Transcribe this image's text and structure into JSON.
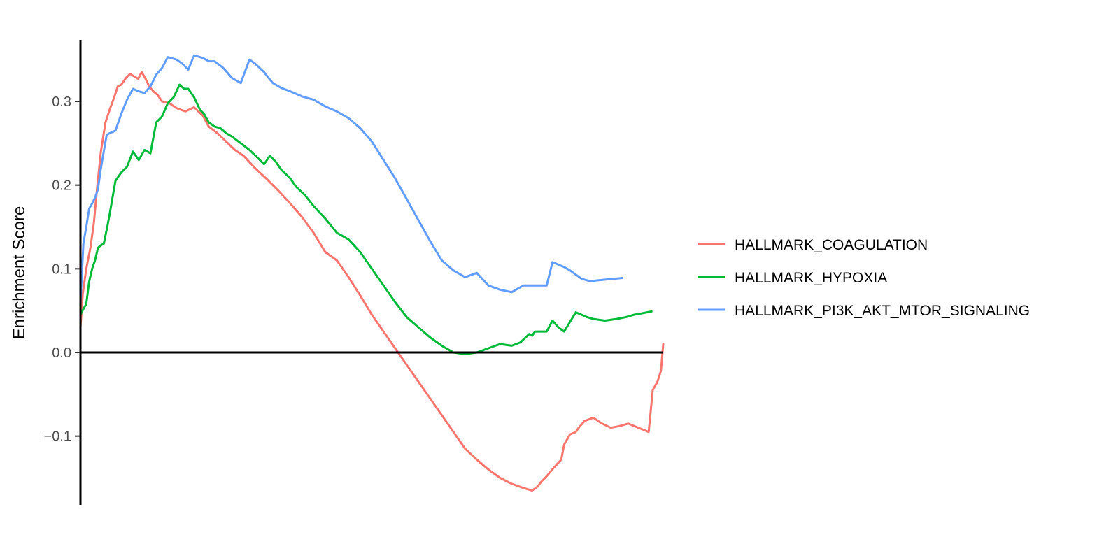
{
  "chart_data": {
    "type": "line",
    "title": "",
    "xlabel": "",
    "ylabel": "Enrichment Score",
    "xlim": [
      0,
      1
    ],
    "ylim": [
      -0.185,
      0.375
    ],
    "yticks": [
      -0.1,
      0.0,
      0.1,
      0.2,
      0.3
    ],
    "ytick_labels": [
      "−0.1",
      "0.0",
      "0.1",
      "0.2",
      "0.3"
    ],
    "grid": false,
    "legend_position": "right",
    "zero_line": true,
    "series": [
      {
        "name": "HALLMARK_COAGULATION",
        "color": "#F8766D",
        "x": [
          0.0,
          0.004,
          0.01,
          0.017,
          0.023,
          0.029,
          0.035,
          0.043,
          0.05,
          0.058,
          0.064,
          0.07,
          0.078,
          0.085,
          0.092,
          0.099,
          0.105,
          0.111,
          0.118,
          0.125,
          0.132,
          0.14,
          0.152,
          0.165,
          0.18,
          0.195,
          0.21,
          0.22,
          0.235,
          0.25,
          0.265,
          0.28,
          0.3,
          0.32,
          0.34,
          0.36,
          0.38,
          0.4,
          0.42,
          0.44,
          0.46,
          0.48,
          0.5,
          0.52,
          0.54,
          0.56,
          0.58,
          0.6,
          0.62,
          0.64,
          0.66,
          0.68,
          0.7,
          0.72,
          0.74,
          0.76,
          0.775,
          0.785,
          0.79,
          0.8,
          0.812,
          0.825,
          0.83,
          0.84,
          0.85,
          0.855,
          0.865,
          0.88,
          0.895,
          0.91,
          0.925,
          0.94,
          0.975,
          0.982,
          0.99,
          0.996,
          1.0
        ],
        "y": [
          0.03,
          0.07,
          0.1,
          0.125,
          0.155,
          0.2,
          0.24,
          0.275,
          0.29,
          0.305,
          0.318,
          0.32,
          0.328,
          0.333,
          0.33,
          0.327,
          0.335,
          0.328,
          0.318,
          0.312,
          0.308,
          0.3,
          0.298,
          0.292,
          0.288,
          0.293,
          0.283,
          0.27,
          0.262,
          0.252,
          0.242,
          0.235,
          0.22,
          0.207,
          0.193,
          0.178,
          0.162,
          0.143,
          0.12,
          0.11,
          0.09,
          0.068,
          0.045,
          0.025,
          0.005,
          -0.015,
          -0.035,
          -0.055,
          -0.075,
          -0.095,
          -0.115,
          -0.128,
          -0.14,
          -0.15,
          -0.157,
          -0.162,
          -0.165,
          -0.16,
          -0.155,
          -0.148,
          -0.138,
          -0.128,
          -0.11,
          -0.098,
          -0.095,
          -0.09,
          -0.082,
          -0.078,
          -0.085,
          -0.09,
          -0.088,
          -0.085,
          -0.095,
          -0.045,
          -0.035,
          -0.022,
          0.01
        ]
      },
      {
        "name": "HALLMARK_HYPOXIA",
        "color": "#00BA38",
        "x": [
          0.0,
          0.005,
          0.01,
          0.015,
          0.02,
          0.025,
          0.03,
          0.035,
          0.04,
          0.046,
          0.05,
          0.055,
          0.06,
          0.065,
          0.07,
          0.08,
          0.09,
          0.1,
          0.11,
          0.12,
          0.13,
          0.14,
          0.15,
          0.16,
          0.17,
          0.178,
          0.185,
          0.195,
          0.205,
          0.212,
          0.22,
          0.23,
          0.24,
          0.25,
          0.26,
          0.275,
          0.29,
          0.305,
          0.315,
          0.325,
          0.335,
          0.345,
          0.36,
          0.37,
          0.385,
          0.4,
          0.42,
          0.44,
          0.46,
          0.48,
          0.5,
          0.52,
          0.54,
          0.56,
          0.58,
          0.6,
          0.62,
          0.64,
          0.66,
          0.68,
          0.7,
          0.72,
          0.74,
          0.755,
          0.77,
          0.775,
          0.78,
          0.79,
          0.8,
          0.81,
          0.82,
          0.83,
          0.85,
          0.86,
          0.87,
          0.88,
          0.9,
          0.92,
          0.935,
          0.95,
          0.965,
          0.98
        ],
        "y": [
          0.045,
          0.052,
          0.058,
          0.085,
          0.1,
          0.11,
          0.125,
          0.128,
          0.13,
          0.15,
          0.165,
          0.185,
          0.205,
          0.21,
          0.215,
          0.222,
          0.24,
          0.23,
          0.242,
          0.238,
          0.275,
          0.282,
          0.298,
          0.305,
          0.32,
          0.315,
          0.315,
          0.305,
          0.29,
          0.285,
          0.275,
          0.27,
          0.268,
          0.262,
          0.258,
          0.25,
          0.242,
          0.232,
          0.225,
          0.235,
          0.228,
          0.218,
          0.208,
          0.198,
          0.188,
          0.175,
          0.16,
          0.143,
          0.135,
          0.12,
          0.1,
          0.08,
          0.06,
          0.042,
          0.03,
          0.018,
          0.008,
          0.0,
          -0.002,
          0.0,
          0.005,
          0.01,
          0.008,
          0.012,
          0.022,
          0.02,
          0.025,
          0.025,
          0.025,
          0.038,
          0.03,
          0.025,
          0.048,
          0.045,
          0.042,
          0.04,
          0.038,
          0.04,
          0.042,
          0.045,
          0.047,
          0.049
        ]
      },
      {
        "name": "HALLMARK_PI3K_AKT_MTOR_SIGNALING",
        "color": "#619CFF",
        "x": [
          0.0,
          0.005,
          0.01,
          0.015,
          0.02,
          0.025,
          0.03,
          0.035,
          0.04,
          0.045,
          0.05,
          0.06,
          0.07,
          0.08,
          0.09,
          0.1,
          0.11,
          0.12,
          0.13,
          0.14,
          0.15,
          0.165,
          0.175,
          0.185,
          0.195,
          0.21,
          0.22,
          0.23,
          0.245,
          0.26,
          0.275,
          0.29,
          0.3,
          0.315,
          0.33,
          0.345,
          0.36,
          0.38,
          0.4,
          0.42,
          0.44,
          0.46,
          0.48,
          0.5,
          0.52,
          0.54,
          0.56,
          0.58,
          0.6,
          0.62,
          0.64,
          0.66,
          0.68,
          0.7,
          0.72,
          0.74,
          0.76,
          0.775,
          0.79,
          0.8,
          0.81,
          0.83,
          0.84,
          0.85,
          0.86,
          0.875,
          0.885,
          0.9,
          0.915,
          0.93
        ],
        "y": [
          0.06,
          0.13,
          0.15,
          0.172,
          0.178,
          0.185,
          0.195,
          0.22,
          0.24,
          0.26,
          0.262,
          0.265,
          0.285,
          0.302,
          0.315,
          0.312,
          0.31,
          0.318,
          0.332,
          0.34,
          0.353,
          0.35,
          0.345,
          0.338,
          0.355,
          0.352,
          0.348,
          0.348,
          0.34,
          0.328,
          0.322,
          0.35,
          0.345,
          0.335,
          0.322,
          0.316,
          0.312,
          0.306,
          0.302,
          0.294,
          0.288,
          0.28,
          0.268,
          0.252,
          0.23,
          0.208,
          0.183,
          0.158,
          0.133,
          0.11,
          0.098,
          0.09,
          0.095,
          0.08,
          0.075,
          0.072,
          0.08,
          0.08,
          0.08,
          0.08,
          0.108,
          0.102,
          0.098,
          0.093,
          0.088,
          0.085,
          0.086,
          0.087,
          0.088,
          0.089
        ]
      }
    ]
  }
}
